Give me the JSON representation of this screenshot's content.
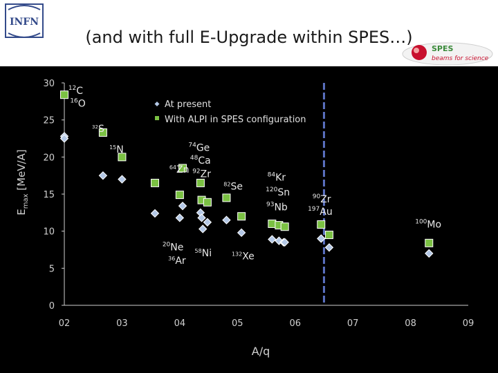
{
  "header": {
    "title": "(and with full E-Upgrade within SPES…)",
    "infn_logo_text": "INFN",
    "spes_logo_text": "SPES",
    "spes_logo_tagline": "beams for science"
  },
  "colors": {
    "present": "#b4c8e6",
    "alpi": "#7bc143",
    "vline": "#5a70c0",
    "axis": "#d0d0d0"
  },
  "chart_data": {
    "type": "scatter",
    "xlabel": "A/q",
    "ylabel_main": "E",
    "ylabel_sub": "max",
    "ylabel_unit": " [MeV/A]",
    "xlim": [
      0.2,
      0.9
    ],
    "ylim": [
      0,
      30
    ],
    "xticks": [
      {
        "value": 0.2,
        "label": "02"
      },
      {
        "value": 0.3,
        "label": "03"
      },
      {
        "value": 0.4,
        "label": "04"
      },
      {
        "value": 0.5,
        "label": "05"
      },
      {
        "value": 0.6,
        "label": "06"
      },
      {
        "value": 0.7,
        "label": "07"
      },
      {
        "value": 0.8,
        "label": "08"
      },
      {
        "value": 0.9,
        "label": "09"
      }
    ],
    "yticks": [
      0,
      5,
      10,
      15,
      20,
      25,
      30
    ],
    "vline_x": 0.65,
    "legend": {
      "placement": "top-center",
      "entries": [
        "At present",
        "With ALPI in SPES configuration"
      ]
    },
    "series": [
      {
        "name": "At present",
        "marker": "diamond",
        "points": [
          [
            0.2,
            22.8
          ],
          [
            0.2,
            22.5
          ],
          [
            0.267,
            17.5
          ],
          [
            0.3,
            17.0
          ],
          [
            0.357,
            12.4
          ],
          [
            0.4,
            11.8
          ],
          [
            0.405,
            13.4
          ],
          [
            0.436,
            12.5
          ],
          [
            0.438,
            11.8
          ],
          [
            0.44,
            10.3
          ],
          [
            0.448,
            11.2
          ],
          [
            0.481,
            11.5
          ],
          [
            0.507,
            9.8
          ],
          [
            0.56,
            8.9
          ],
          [
            0.572,
            8.7
          ],
          [
            0.58,
            8.5
          ],
          [
            0.582,
            8.5
          ],
          [
            0.645,
            9.0
          ],
          [
            0.659,
            7.8
          ],
          [
            0.832,
            7.0
          ]
        ]
      },
      {
        "name": "With ALPI in SPES configuration",
        "marker": "square",
        "points": [
          [
            0.2,
            28.4
          ],
          [
            0.267,
            23.3
          ],
          [
            0.3,
            20.0
          ],
          [
            0.357,
            16.5
          ],
          [
            0.4,
            14.9
          ],
          [
            0.405,
            18.5
          ],
          [
            0.436,
            16.5
          ],
          [
            0.438,
            14.2
          ],
          [
            0.448,
            13.9
          ],
          [
            0.481,
            14.5
          ],
          [
            0.507,
            12.0
          ],
          [
            0.56,
            11.0
          ],
          [
            0.572,
            10.8
          ],
          [
            0.582,
            10.6
          ],
          [
            0.645,
            10.9
          ],
          [
            0.659,
            9.5
          ],
          [
            0.832,
            8.4
          ]
        ]
      }
    ],
    "annotations": [
      {
        "sup": "12",
        "base": "C",
        "x": 0.207,
        "y": 28.5,
        "size": 15
      },
      {
        "sup": "16",
        "base": "O",
        "x": 0.21,
        "y": 26.8,
        "size": 15
      },
      {
        "sup": "32",
        "base": "S",
        "x": 0.248,
        "y": 23.4,
        "size": 12
      },
      {
        "sup": "15",
        "base": "N",
        "x": 0.278,
        "y": 20.6,
        "size": 13
      },
      {
        "sup": "74",
        "base": "Ge",
        "x": 0.415,
        "y": 20.8,
        "size": 15
      },
      {
        "sup": "48",
        "base": "Ca",
        "x": 0.418,
        "y": 19.1,
        "size": 15
      },
      {
        "sup": "64",
        "base": "Zn",
        "x": 0.382,
        "y": 17.9,
        "size": 13
      },
      {
        "sup": "92",
        "base": "Zr",
        "x": 0.422,
        "y": 17.3,
        "size": 15
      },
      {
        "sup": "82",
        "base": "Se",
        "x": 0.476,
        "y": 15.6,
        "size": 13
      },
      {
        "sup": "84",
        "base": "Kr",
        "x": 0.552,
        "y": 16.8,
        "size": 14
      },
      {
        "sup": "120",
        "base": "Sn",
        "x": 0.549,
        "y": 14.8,
        "size": 14
      },
      {
        "sup": "93",
        "base": "Nb",
        "x": 0.55,
        "y": 12.8,
        "size": 14
      },
      {
        "sup": "90",
        "base": "Zr",
        "x": 0.63,
        "y": 13.9,
        "size": 14
      },
      {
        "sup": "197",
        "base": "Au",
        "x": 0.622,
        "y": 12.2,
        "size": 14
      },
      {
        "sup": "100",
        "base": "Mo",
        "x": 0.808,
        "y": 10.5,
        "size": 14
      },
      {
        "sup": "20",
        "base": "Ne",
        "x": 0.37,
        "y": 7.4,
        "size": 14
      },
      {
        "sup": "36",
        "base": "Ar",
        "x": 0.38,
        "y": 5.6,
        "size": 13
      },
      {
        "sup": "58",
        "base": "Ni",
        "x": 0.426,
        "y": 6.6,
        "size": 13
      },
      {
        "sup": "132",
        "base": "Xe",
        "x": 0.49,
        "y": 6.2,
        "size": 13
      }
    ]
  }
}
